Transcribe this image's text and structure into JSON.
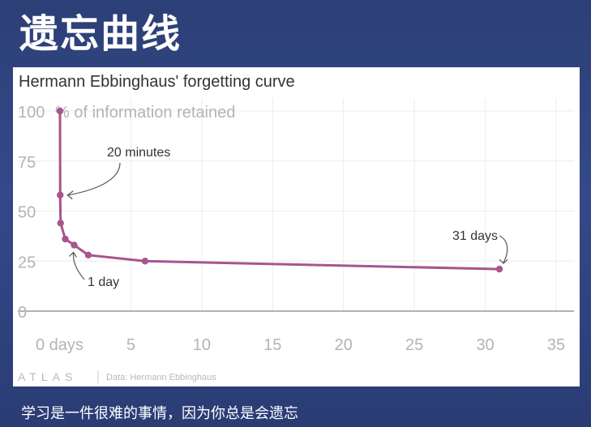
{
  "slide": {
    "title": "遗忘曲线",
    "caption": "学习是一件很难的事情，因为你总是会遗忘"
  },
  "chart_data": {
    "type": "line",
    "title": "Hermann Ebbinghaus' forgetting curve",
    "ylabel": "% of information retained",
    "xlabel": "",
    "x_ticks": [
      "0 days",
      "5",
      "10",
      "15",
      "20",
      "25",
      "30",
      "35"
    ],
    "y_ticks": [
      "100",
      "75",
      "50",
      "25",
      "0"
    ],
    "xlim": [
      0,
      35
    ],
    "ylim": [
      0,
      100
    ],
    "grid": true,
    "series": [
      {
        "x": [
          0,
          0.014,
          0.042,
          0.375,
          1,
          2,
          6,
          31
        ],
        "y": [
          100,
          58,
          44,
          36,
          33,
          28,
          25,
          21
        ]
      }
    ],
    "annotations": [
      {
        "text": "20 minutes",
        "x": 0.014,
        "y": 58
      },
      {
        "text": "1 day",
        "x": 1,
        "y": 33
      },
      {
        "text": "31 days",
        "x": 31,
        "y": 21
      }
    ],
    "line_color": "#a8558e",
    "source": "Data: Hermann Ebbinghaus",
    "brand": "ATLAS"
  }
}
